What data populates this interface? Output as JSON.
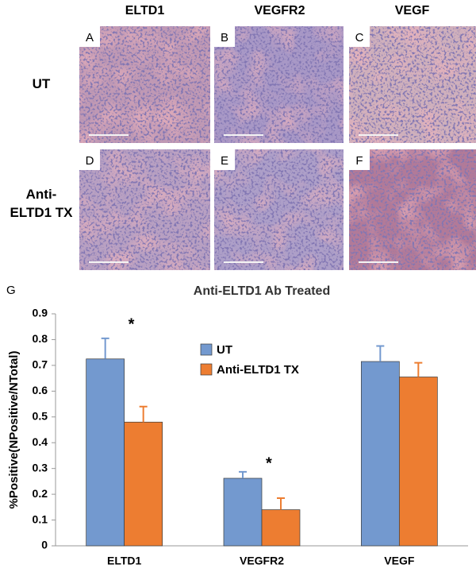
{
  "figure": {
    "columns": [
      "ELTD1",
      "VEGFR2",
      "VEGF"
    ],
    "rows": [
      "UT",
      "Anti-ELTD1 TX"
    ],
    "panels": [
      "A",
      "B",
      "C",
      "D",
      "E",
      "F"
    ],
    "chart_panel": "G"
  },
  "chart_data": {
    "type": "bar",
    "title": "Anti-ELTD1 Ab Treated",
    "y_label": "%Positive(NPositive/NTotal)",
    "categories": [
      "ELTD1",
      "VEGFR2",
      "VEGF"
    ],
    "series": [
      {
        "name": "UT",
        "color": "#7399cf",
        "values": [
          0.725,
          0.262,
          0.715
        ],
        "errors": [
          0.08,
          0.025,
          0.06
        ]
      },
      {
        "name": "Anti-ELTD1 TX",
        "color": "#ed7d31",
        "values": [
          0.48,
          0.14,
          0.655
        ],
        "errors": [
          0.06,
          0.045,
          0.055
        ]
      }
    ],
    "annotations": [
      "*",
      "*"
    ],
    "ylim": [
      0,
      0.9
    ],
    "yticks": [
      0,
      0.1,
      0.2,
      0.3,
      0.4,
      0.5,
      0.6,
      0.7,
      0.8,
      0.9
    ],
    "grid": false,
    "legend": "top"
  }
}
